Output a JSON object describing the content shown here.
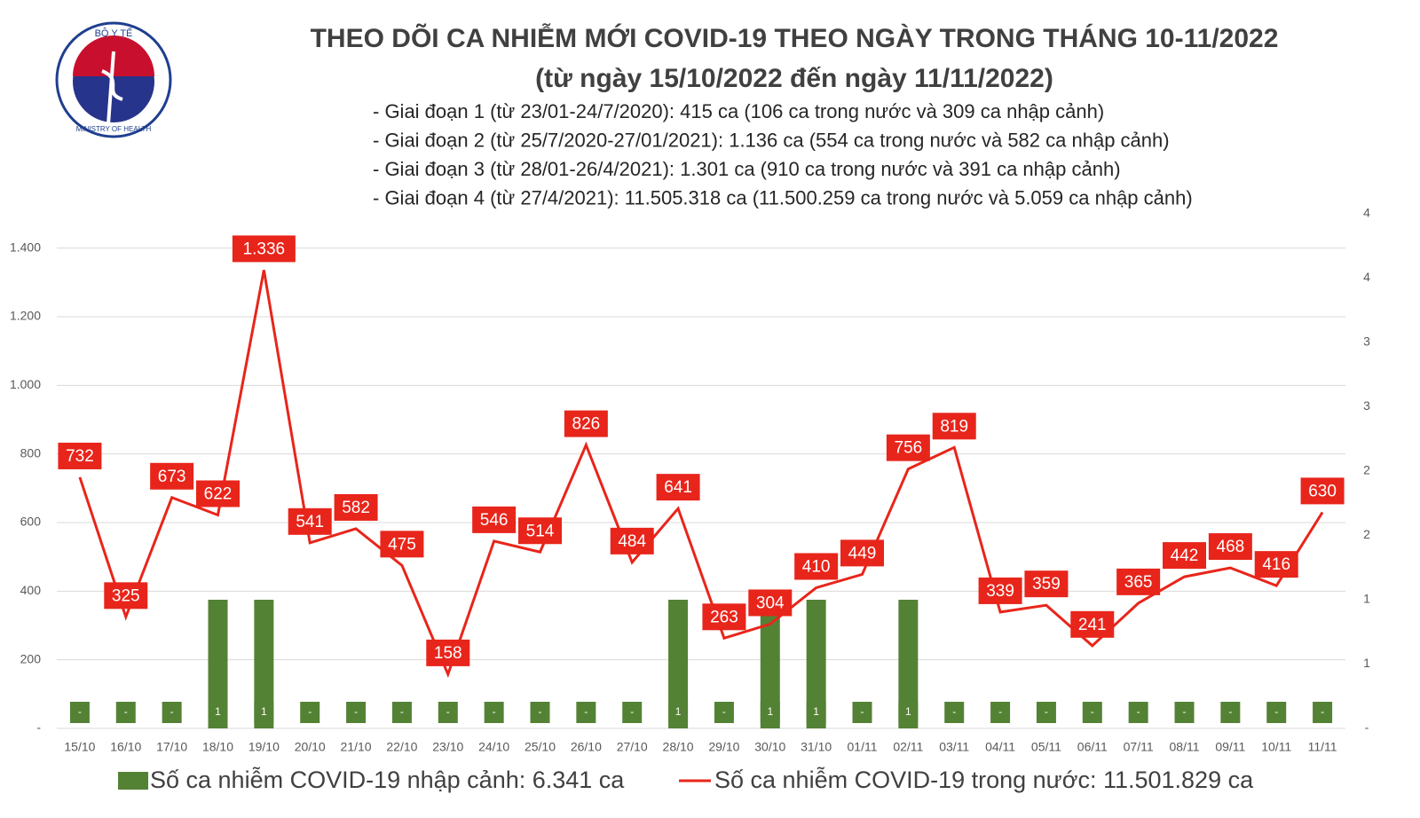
{
  "logo": {
    "top": "BỘ Y TẾ",
    "bottom": "MINISTRY OF HEALTH"
  },
  "chart_data": {
    "type": "combo",
    "title": "THEO DÕI CA NHIỄM MỚI COVID-19 THEO NGÀY TRONG THÁNG 10-11/2022",
    "subtitle": "(từ ngày 15/10/2022 đến ngày 11/11/2022)",
    "notes": [
      "- Giai đoạn 1 (từ 23/01-24/7/2020): 415 ca (106 ca trong nước và 309 ca nhập cảnh)",
      "- Giai đoạn 2 (từ 25/7/2020-27/01/2021): 1.136 ca (554 ca trong nước và 582 ca nhập cảnh)",
      "- Giai đoạn 3 (từ 28/01-26/4/2021): 1.301 ca (910 ca trong nước và 391 ca nhập cảnh)",
      "- Giai đoạn 4 (từ 27/4/2021): 11.505.318 ca (11.500.259 ca trong nước và 5.059 ca nhập cảnh)"
    ],
    "categories": [
      "15/10",
      "16/10",
      "17/10",
      "18/10",
      "19/10",
      "20/10",
      "21/10",
      "22/10",
      "23/10",
      "24/10",
      "25/10",
      "26/10",
      "27/10",
      "28/10",
      "29/10",
      "30/10",
      "31/10",
      "01/11",
      "02/11",
      "03/11",
      "04/11",
      "05/11",
      "06/11",
      "07/11",
      "08/11",
      "09/11",
      "10/11",
      "11/11"
    ],
    "series": [
      {
        "name": "Số ca nhiễm COVID-19 nhập cảnh: 6.341 ca",
        "type": "bar",
        "axis": "y2",
        "color": "#548235",
        "values": [
          0,
          0,
          0,
          1,
          1,
          0,
          0,
          0,
          0,
          0,
          0,
          0,
          0,
          1,
          0,
          1,
          1,
          0,
          1,
          0,
          0,
          0,
          0,
          0,
          0,
          0,
          0,
          0
        ],
        "value_labels": [
          "-",
          "-",
          "-",
          "1",
          "1",
          "-",
          "-",
          "-",
          "-",
          "-",
          "-",
          "-",
          "-",
          "1",
          "-",
          "1",
          "1",
          "-",
          "1",
          "-",
          "-",
          "-",
          "-",
          "-",
          "-",
          "-",
          "-",
          "-"
        ]
      },
      {
        "name": "Số ca nhiễm COVID-19 trong nước: 11.501.829 ca",
        "type": "line",
        "color": "#e8251b",
        "values": [
          732,
          325,
          673,
          622,
          1336,
          541,
          582,
          475,
          158,
          546,
          514,
          826,
          484,
          641,
          263,
          304,
          410,
          449,
          756,
          819,
          339,
          359,
          241,
          365,
          442,
          468,
          416,
          630
        ],
        "value_labels": [
          "732",
          "325",
          "673",
          "622",
          "1.336",
          "541",
          "582",
          "475",
          "158",
          "546",
          "514",
          "826",
          "484",
          "641",
          "263",
          "304",
          "410",
          "449",
          "756",
          "819",
          "339",
          "359",
          "241",
          "365",
          "442",
          "468",
          "416",
          "630"
        ]
      }
    ],
    "ylim": [
      0,
      1500
    ],
    "yticks": [
      {
        "value": 0,
        "label": "-"
      },
      200,
      400,
      600,
      800,
      {
        "value": 1000,
        "label": "1.000"
      },
      {
        "value": 1200,
        "label": "1.200"
      },
      {
        "value": 1400,
        "label": "1.400"
      }
    ],
    "y2lim": [
      0,
      4
    ],
    "y2ticks": [
      {
        "value": 0,
        "label": "-"
      },
      {
        "value": 0.5,
        "label": "1"
      },
      1,
      {
        "value": 1.5,
        "label": "2"
      },
      2,
      {
        "value": 2.5,
        "label": "3"
      },
      3,
      {
        "value": 3.5,
        "label": "4"
      },
      4
    ],
    "grid": true
  }
}
